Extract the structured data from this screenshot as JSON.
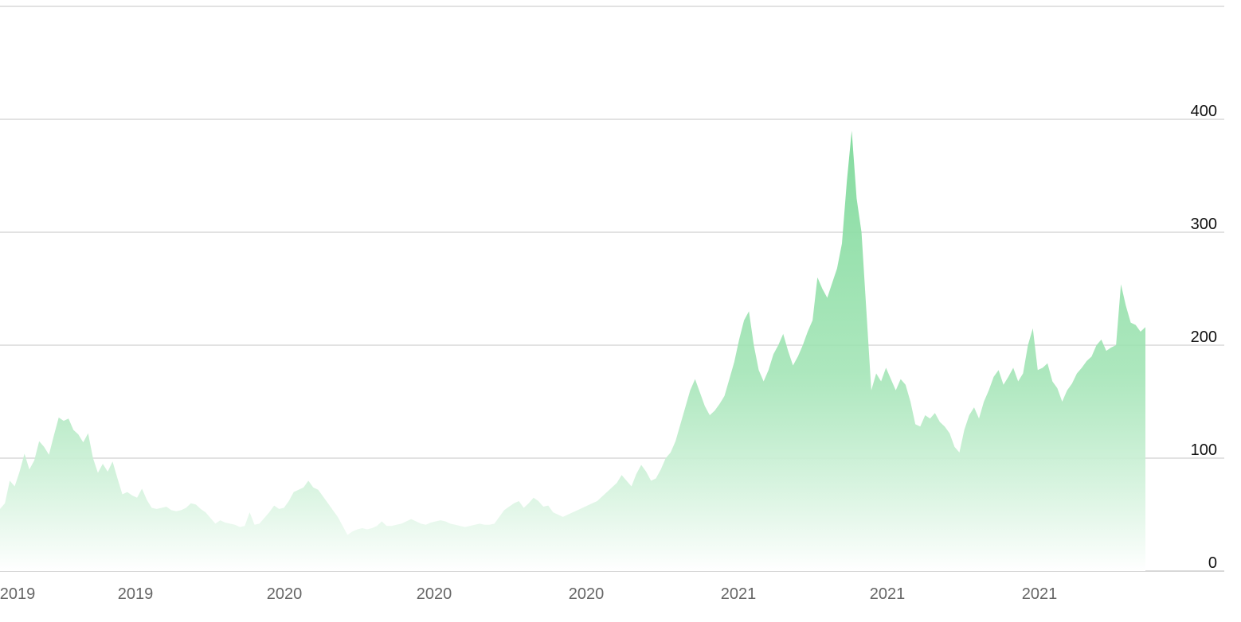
{
  "chart_data": {
    "type": "area",
    "title": "",
    "xlabel": "",
    "ylabel": "",
    "ylim": [
      0,
      500
    ],
    "grid": true,
    "legend": "none",
    "y_ticks": [
      "0",
      "100",
      "200",
      "300",
      "400"
    ],
    "x_tick_labels": [
      "2019",
      "2019",
      "2020",
      "2020",
      "2020",
      "2021",
      "2021",
      "2021"
    ],
    "colors": {
      "fill_top": "#7ed99a",
      "fill_bottom": "#ffffff",
      "grid": "#d9d9d9",
      "axis": "#cccccc"
    },
    "series": [
      {
        "values": [
          55,
          60,
          80,
          75,
          88,
          104,
          90,
          98,
          115,
          110,
          103,
          120,
          136,
          133,
          135,
          125,
          121,
          114,
          122,
          100,
          87,
          95,
          88,
          97,
          82,
          68,
          70,
          67,
          65,
          73,
          63,
          56,
          55,
          56,
          57,
          54,
          53,
          54,
          56,
          60,
          59,
          55,
          52,
          47,
          42,
          45,
          43,
          42,
          41,
          39,
          40,
          52,
          41,
          42,
          47,
          52,
          58,
          55,
          56,
          62,
          70,
          72,
          74,
          80,
          74,
          72,
          66,
          60,
          54,
          48,
          40,
          32,
          35,
          37,
          38,
          37,
          38,
          40,
          44,
          40,
          40,
          41,
          42,
          44,
          46,
          44,
          42,
          41,
          43,
          44,
          45,
          44,
          42,
          41,
          40,
          39,
          40,
          41,
          42,
          41,
          41,
          42,
          48,
          54,
          57,
          60,
          62,
          56,
          60,
          65,
          62,
          57,
          58,
          52,
          50,
          48,
          50,
          52,
          54,
          56,
          58,
          60,
          62,
          66,
          70,
          74,
          78,
          85,
          80,
          75,
          86,
          94,
          88,
          80,
          82,
          90,
          100,
          105,
          115,
          130,
          145,
          160,
          170,
          158,
          146,
          138,
          142,
          148,
          155,
          170,
          185,
          205,
          222,
          230,
          200,
          178,
          168,
          178,
          192,
          200,
          210,
          195,
          182,
          190,
          200,
          212,
          222,
          260,
          250,
          242,
          255,
          268,
          290,
          345,
          390,
          330,
          300,
          230,
          160,
          175,
          168,
          180,
          170,
          160,
          170,
          165,
          150,
          130,
          128,
          138,
          135,
          140,
          132,
          128,
          122,
          110,
          105,
          125,
          138,
          145,
          135,
          150,
          160,
          172,
          178,
          165,
          172,
          180,
          168,
          175,
          200,
          215,
          178,
          180,
          184,
          168,
          162,
          150,
          160,
          166,
          175,
          180,
          186,
          190,
          200,
          205,
          195,
          198,
          200,
          254,
          235,
          220,
          218,
          212,
          216
        ]
      }
    ]
  }
}
